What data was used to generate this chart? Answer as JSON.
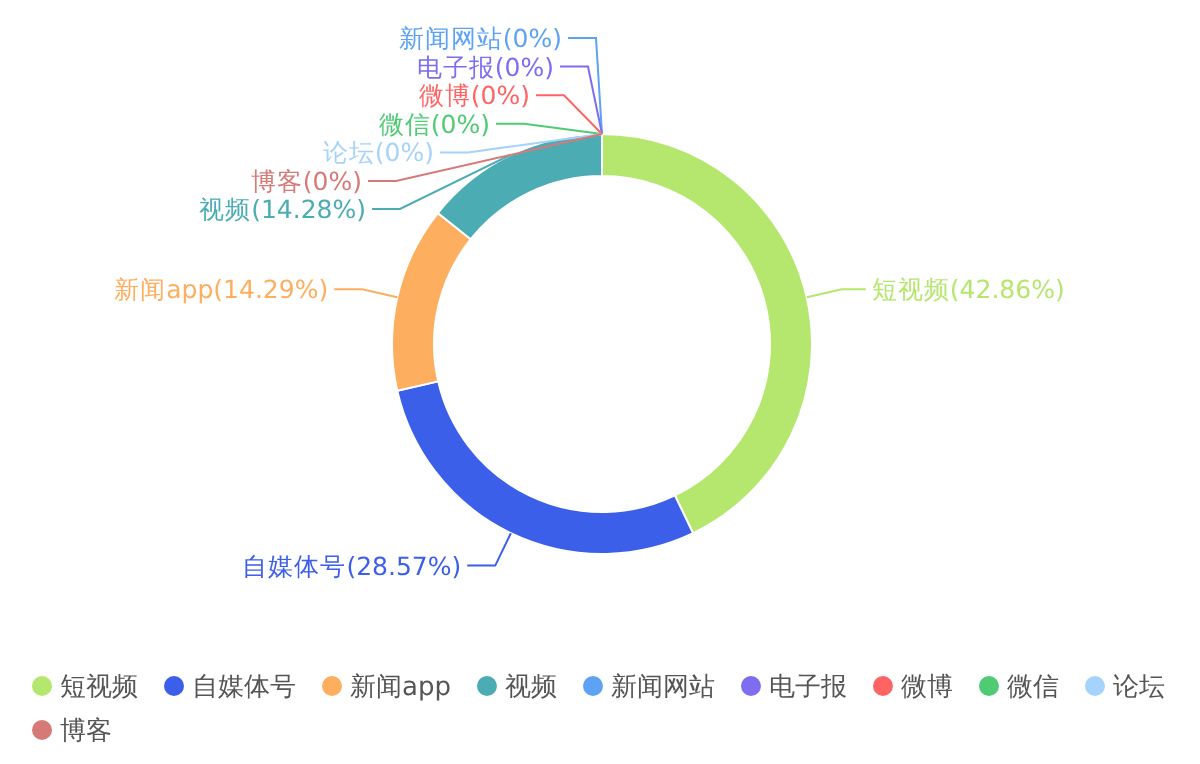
{
  "chart_data": {
    "type": "donut",
    "categories": [
      "短视频",
      "自媒体号",
      "新闻app",
      "视频",
      "新闻网站",
      "电子报",
      "微博",
      "微信",
      "论坛",
      "博客"
    ],
    "values": [
      42.86,
      28.57,
      14.29,
      14.28,
      0,
      0,
      0,
      0,
      0,
      0
    ],
    "colors": [
      "#b5e76f",
      "#3b5fe8",
      "#fdae5f",
      "#4cacb4",
      "#5ea2f3",
      "#7e6df0",
      "#ff6464",
      "#4ecb73",
      "#a6d3fb",
      "#d67a78"
    ],
    "value_labels": [
      "(42.86%)",
      "(28.57%)",
      "(14.29%)",
      "(14.28%)",
      "(0%)",
      "(0%)",
      "(0%)",
      "(0%)",
      "(0%)",
      "(0%)"
    ],
    "legend": "bottom"
  }
}
